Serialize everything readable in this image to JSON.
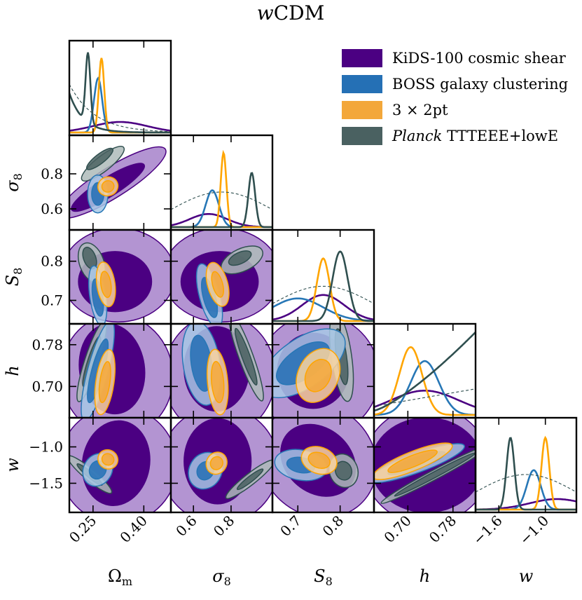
{
  "chart_data": {
    "type": "corner",
    "title_italic": "w",
    "title_rest": "CDM",
    "parameters": [
      {
        "id": "om",
        "label_main": "Ω",
        "label_sub": "m",
        "range": [
          0.18,
          0.48
        ],
        "ticks": [
          0.25,
          0.4
        ],
        "tick_labels": [
          "0.25",
          "0.40"
        ]
      },
      {
        "id": "s8",
        "label_main": "σ",
        "label_sub": "8",
        "range": [
          0.48,
          1.02
        ],
        "ticks": [
          0.6,
          0.8
        ],
        "tick_labels": [
          "0.6",
          "0.8"
        ]
      },
      {
        "id": "S8",
        "label_main": "S",
        "label_sub": "8",
        "range": [
          0.64,
          0.88
        ],
        "ticks": [
          0.7,
          0.8
        ],
        "tick_labels": [
          "0.7",
          "0.8"
        ]
      },
      {
        "id": "h",
        "label_main": "h",
        "label_sub": "",
        "range": [
          0.64,
          0.82
        ],
        "ticks": [
          0.7,
          0.78
        ],
        "tick_labels": [
          "0.70",
          "0.78"
        ]
      },
      {
        "id": "w",
        "label_main": "w",
        "label_sub": "",
        "range": [
          -1.9,
          -0.6
        ],
        "ticks": [
          -1.6,
          -1.0
        ],
        "tick_labels": [
          "−1.6",
          "−1.0"
        ]
      }
    ],
    "y_axes": [
      {
        "id": "s8",
        "ticks": [
          0.6,
          0.8
        ],
        "tick_labels": [
          "0.6",
          "0.8"
        ]
      },
      {
        "id": "S8",
        "ticks": [
          0.7,
          0.8
        ],
        "tick_labels": [
          "0.7",
          "0.8"
        ]
      },
      {
        "id": "h",
        "ticks": [
          0.7,
          0.78
        ],
        "tick_labels": [
          "0.70",
          "0.78"
        ]
      },
      {
        "id": "w",
        "ticks": [
          -1.5,
          -1.0
        ],
        "tick_labels": [
          "−1.5",
          "−1.0"
        ]
      }
    ],
    "series": [
      {
        "name": "KiDS-100 cosmic shear",
        "name_italic": "",
        "key": "kids",
        "color_outer": "#b394d2",
        "color_inner": "#4b0082",
        "line": "#4b0082"
      },
      {
        "name": "BOSS galaxy clustering",
        "name_italic": "",
        "key": "boss",
        "color_outer": "#a7c8e6",
        "color_inner": "#2570b5",
        "line": "#2777b6"
      },
      {
        "name": "3 × 2pt",
        "name_italic": "",
        "key": "x3",
        "color_outer": "#fbd59e",
        "color_inner": "#f3a73a",
        "line": "#ffa500"
      },
      {
        "name": " TTTEEE+lowE",
        "name_italic": "Planck",
        "key": "planck",
        "color_outer": "#aebbba",
        "color_inner": "#4a6161",
        "line": "#2f4f4f"
      }
    ],
    "marginals": {
      "om": {
        "kids": {
          "peak": 0.33,
          "width": 0.08,
          "height": 0.12
        },
        "boss": {
          "peak": 0.265,
          "width": 0.012,
          "height": 0.62
        },
        "x3": {
          "peak": 0.275,
          "width": 0.008,
          "height": 0.85
        },
        "planck": {
          "peak": 0.235,
          "width": 0.007,
          "height": 0.8,
          "tail": true
        }
      },
      "s8": {
        "kids": {
          "peak": 0.68,
          "width": 0.1,
          "height": 0.15
        },
        "boss": {
          "peak": 0.7,
          "width": 0.035,
          "height": 0.42
        },
        "x3": {
          "peak": 0.76,
          "width": 0.015,
          "height": 0.85
        },
        "planck": {
          "peak": 0.91,
          "width": 0.018,
          "height": 0.62
        }
      },
      "S8": {
        "kids": {
          "peak": 0.76,
          "width": 0.05,
          "height": 0.3
        },
        "boss": {
          "peak": 0.7,
          "width": 0.06,
          "height": 0.26
        },
        "x3": {
          "peak": 0.76,
          "width": 0.015,
          "height": 0.72
        },
        "planck": {
          "peak": 0.8,
          "width": 0.018,
          "height": 0.8
        }
      },
      "h": {
        "kids": {
          "peak": 0.73,
          "width": 0.06,
          "height": 0.28
        },
        "boss": {
          "peak": 0.73,
          "width": 0.025,
          "height": 0.62
        },
        "x3": {
          "peak": 0.705,
          "width": 0.02,
          "height": 0.78
        },
        "planck": {
          "rising": true
        }
      },
      "w": {
        "kids": {
          "peak": -0.85,
          "width": 0.35,
          "height": 0.12
        },
        "boss": {
          "peak": -1.15,
          "width": 0.09,
          "height": 0.45
        },
        "x3": {
          "peak": -1.0,
          "width": 0.05,
          "height": 0.82
        },
        "planck": {
          "peak": -1.45,
          "width": 0.05,
          "height": 0.82
        }
      }
    }
  }
}
